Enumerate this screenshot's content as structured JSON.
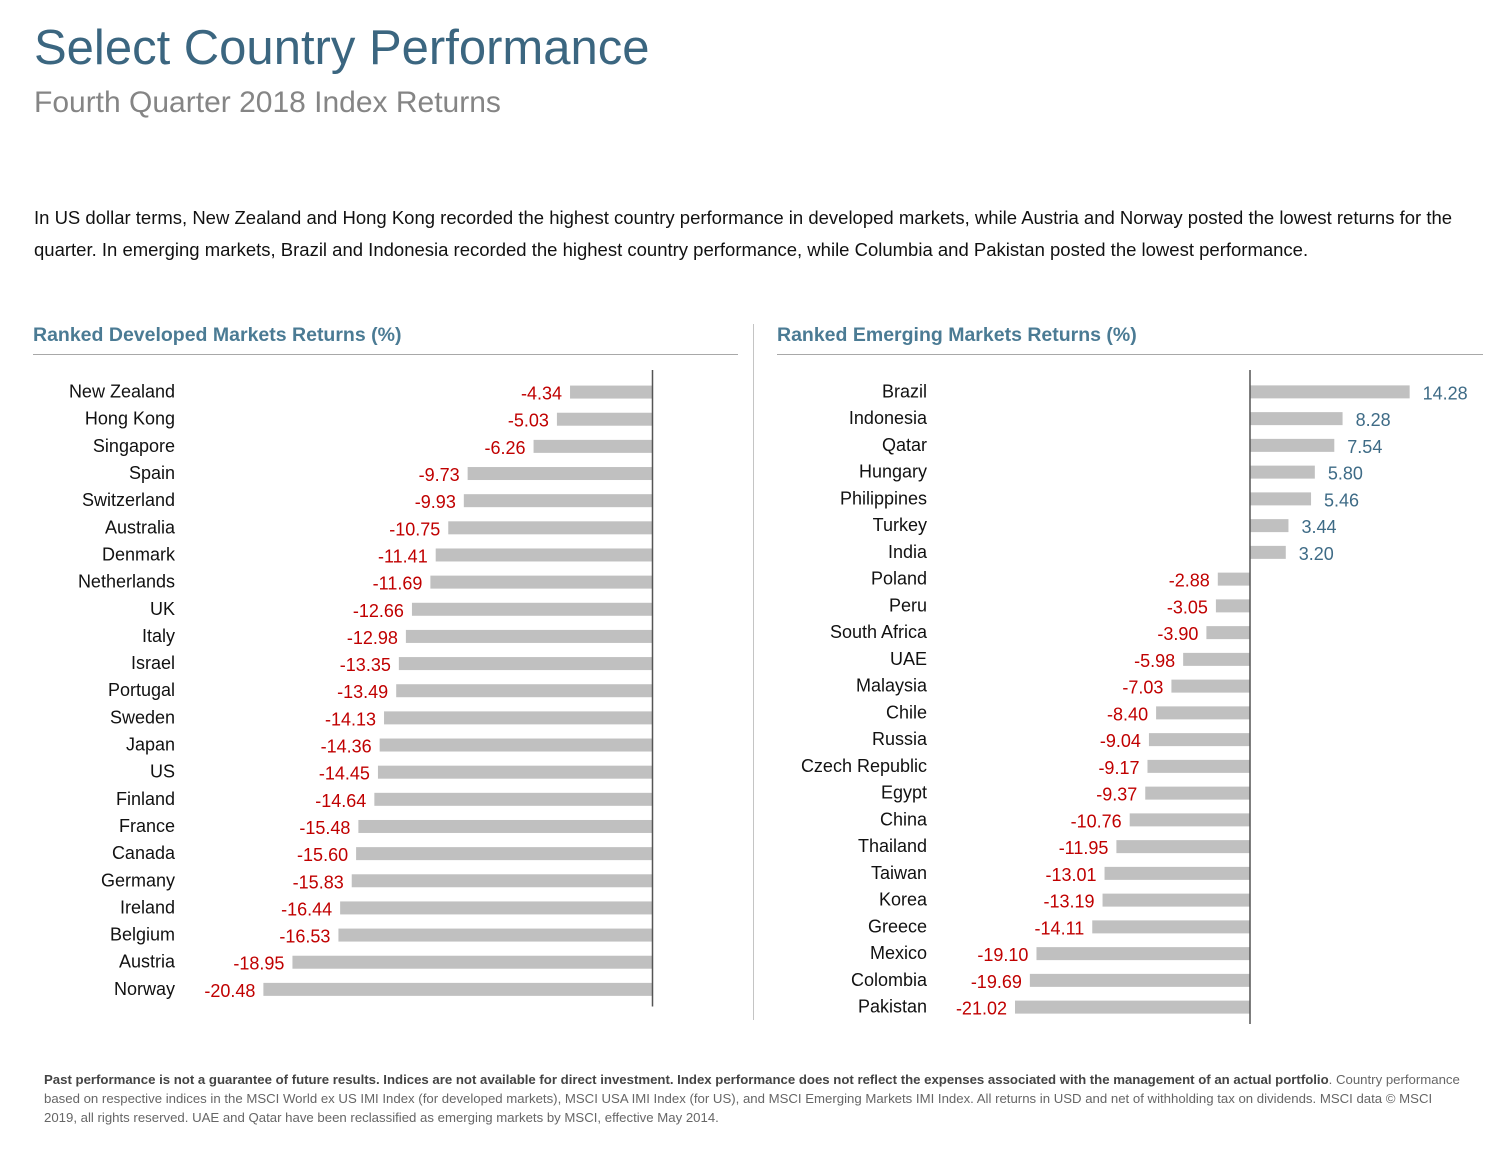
{
  "title": "Select Country Performance",
  "subtitle": "Fourth Quarter 2018 Index Returns",
  "intro": "In US dollar terms, New Zealand and Hong Kong recorded the highest country performance in developed markets, while Austria and Norway posted the lowest returns for the quarter. In emerging markets, Brazil  and Indonesia recorded the highest country performance, while Columbia and Pakistan posted the lowest performance.",
  "colors": {
    "title": "#3b6680",
    "subtitle": "#858585",
    "panel_title": "#4b7b94",
    "bar": "#c0c0c0",
    "negative_label": "#c00000",
    "positive_label": "#3e6b86",
    "axis": "#555555"
  },
  "chart_data": [
    {
      "type": "bar",
      "orientation": "horizontal",
      "title": "Ranked Developed Markets Returns (%)",
      "categories": [
        "New Zealand",
        "Hong Kong",
        "Singapore",
        "Spain",
        "Switzerland",
        "Australia",
        "Denmark",
        "Netherlands",
        "UK",
        "Italy",
        "Israel",
        "Portugal",
        "Sweden",
        "Japan",
        "US",
        "Finland",
        "France",
        "Canada",
        "Germany",
        "Ireland",
        "Belgium",
        "Austria",
        "Norway"
      ],
      "values": [
        -4.34,
        -5.03,
        -6.26,
        -9.73,
        -9.93,
        -10.75,
        -11.41,
        -11.69,
        -12.66,
        -12.98,
        -13.35,
        -13.49,
        -14.13,
        -14.36,
        -14.45,
        -14.64,
        -15.48,
        -15.6,
        -15.83,
        -16.44,
        -16.53,
        -18.95,
        -20.48
      ],
      "labels": [
        "-4.34",
        "-5.03",
        "-6.26",
        "-9.73",
        "-9.93",
        "-10.75",
        "-11.41",
        "-11.69",
        "-12.66",
        "-12.98",
        "-13.35",
        "-13.49",
        "-14.13",
        "-14.36",
        "-14.45",
        "-14.64",
        "-15.48",
        "-15.60",
        "-15.83",
        "-16.44",
        "-16.53",
        "-18.95",
        "-20.48"
      ],
      "xlim": [
        -34,
        0
      ],
      "grid": false,
      "legend": false
    },
    {
      "type": "bar",
      "orientation": "horizontal",
      "title": "Ranked Emerging Markets Returns (%)",
      "categories": [
        "Brazil",
        "Indonesia",
        "Qatar",
        "Hungary",
        "Philippines",
        "Turkey",
        "India",
        "Poland",
        "Peru",
        "South Africa",
        "UAE",
        "Malaysia",
        "Chile",
        "Russia",
        "Czech Republic",
        "Egypt",
        "China",
        "Thailand",
        "Taiwan",
        "Korea",
        "Greece",
        "Mexico",
        "Colombia",
        "Pakistan"
      ],
      "values": [
        14.28,
        8.28,
        7.54,
        5.8,
        5.46,
        3.44,
        3.2,
        -2.88,
        -3.05,
        -3.9,
        -5.98,
        -7.03,
        -8.4,
        -9.04,
        -9.17,
        -9.37,
        -10.76,
        -11.95,
        -13.01,
        -13.19,
        -14.11,
        -19.1,
        -19.69,
        -21.02
      ],
      "labels": [
        "14.28",
        "8.28",
        "7.54",
        "5.80",
        "5.46",
        "3.44",
        "3.20",
        "-2.88",
        "-3.05",
        "-3.90",
        "-5.98",
        "-7.03",
        "-8.40",
        "-9.04",
        "-9.17",
        "-9.37",
        "-10.76",
        "-11.95",
        "-13.01",
        "-13.19",
        "-14.11",
        "-19.10",
        "-19.69",
        "-21.02"
      ],
      "xlim": [
        -28,
        22
      ],
      "grid": false,
      "legend": false
    }
  ],
  "footer": {
    "bold": "Past performance is not a guarantee of future results. Indices are not available for direct investment. Index performance does not reflect the expenses associated with the management of an actual portfolio",
    "period": ".",
    "text": " Country performance based on respective indices in the MSCI World ex US IMI Index (for developed markets), MSCI USA IMI Index (for US), and MSCI Emerging Markets IMI Index. All returns in USD and net of withholding tax on dividends. MSCI data © MSCI 2019, all rights reserved. UAE and Qatar have been reclassified as emerging markets by MSCI, effective May 2014."
  }
}
